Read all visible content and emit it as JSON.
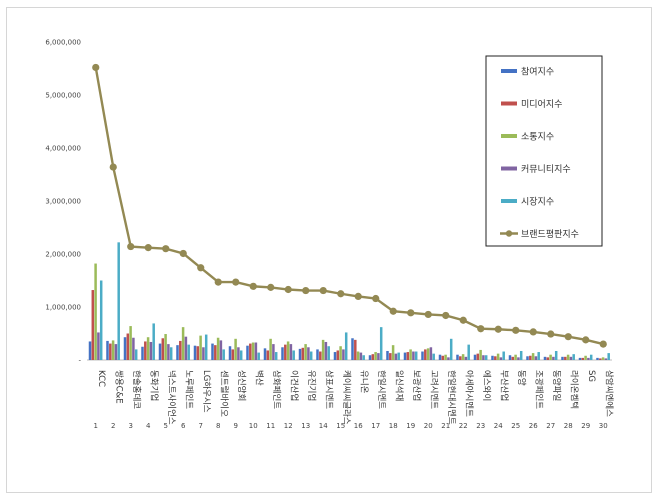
{
  "chart_data": {
    "type": "bar",
    "yticks": [
      "6,000,000",
      "5,000,000",
      "4,000,000",
      "3,000,000",
      "2,000,000",
      "1,000,000",
      "-"
    ],
    "ylim": [
      0,
      6000000
    ],
    "categories": [
      "KCC",
      "쌍용C&E",
      "한솔홈데코",
      "동화기업",
      "넥스트사이언스",
      "노루페인트",
      "LG하우시스",
      "센트럴바이오",
      "성신양회",
      "벽산",
      "삼화페인트",
      "이건산업",
      "유진기업",
      "삼표시멘트",
      "케이씨씨글라스",
      "유니온",
      "한일시멘트",
      "일신석재",
      "보광산업",
      "고려시멘트",
      "한일현대시멘트",
      "아세아시멘트",
      "에스와이",
      "부산산업",
      "동양",
      "조광페인트",
      "동양파일",
      "라이온켐텍",
      "SG",
      "삼암씨엔에스"
    ],
    "ranks": [
      "1",
      "2",
      "3",
      "4",
      "5",
      "6",
      "7",
      "8",
      "9",
      "10",
      "11",
      "12",
      "13",
      "14",
      "15",
      "16",
      "17",
      "18",
      "19",
      "20",
      "21",
      "22",
      "23",
      "24",
      "25",
      "26",
      "27",
      "28",
      "29",
      "30"
    ],
    "legend_position": "top-right",
    "series": [
      {
        "name": "참여지수",
        "color": "#4472c4",
        "type": "bar",
        "values": [
          350000,
          360000,
          430000,
          250000,
          310000,
          280000,
          270000,
          310000,
          260000,
          270000,
          220000,
          240000,
          210000,
          200000,
          150000,
          410000,
          90000,
          170000,
          140000,
          160000,
          100000,
          100000,
          100000,
          80000,
          90000,
          70000,
          60000,
          60000,
          40000,
          40000
        ]
      },
      {
        "name": "미디어지수",
        "color": "#c0504d",
        "type": "bar",
        "values": [
          1320000,
          310000,
          500000,
          350000,
          410000,
          360000,
          260000,
          280000,
          200000,
          310000,
          180000,
          290000,
          230000,
          160000,
          180000,
          380000,
          110000,
          130000,
          150000,
          200000,
          80000,
          70000,
          120000,
          70000,
          60000,
          80000,
          50000,
          60000,
          40000,
          30000
        ]
      },
      {
        "name": "소통지수",
        "color": "#9bbb59",
        "type": "bar",
        "values": [
          1820000,
          370000,
          640000,
          430000,
          490000,
          620000,
          460000,
          420000,
          400000,
          330000,
          400000,
          350000,
          300000,
          380000,
          260000,
          160000,
          150000,
          280000,
          200000,
          220000,
          100000,
          110000,
          190000,
          120000,
          100000,
          130000,
          100000,
          100000,
          80000,
          50000
        ]
      },
      {
        "name": "커뮤니티지수",
        "color": "#8064a2",
        "type": "bar",
        "values": [
          520000,
          300000,
          420000,
          340000,
          300000,
          440000,
          240000,
          370000,
          240000,
          330000,
          300000,
          300000,
          240000,
          340000,
          200000,
          140000,
          130000,
          120000,
          160000,
          240000,
          50000,
          60000,
          90000,
          50000,
          50000,
          70000,
          60000,
          60000,
          40000,
          30000
        ]
      },
      {
        "name": "시장지수",
        "color": "#4bacc6",
        "type": "bar",
        "values": [
          1500000,
          2220000,
          200000,
          690000,
          240000,
          290000,
          480000,
          200000,
          180000,
          140000,
          150000,
          180000,
          160000,
          260000,
          520000,
          90000,
          620000,
          140000,
          160000,
          120000,
          400000,
          290000,
          90000,
          160000,
          170000,
          150000,
          170000,
          110000,
          100000,
          130000
        ]
      },
      {
        "name": "브랜드평판지수",
        "color": "#938953",
        "type": "line",
        "values": [
          5520000,
          3640000,
          2140000,
          2120000,
          2100000,
          2010000,
          1740000,
          1470000,
          1470000,
          1390000,
          1370000,
          1330000,
          1310000,
          1310000,
          1250000,
          1200000,
          1160000,
          920000,
          890000,
          860000,
          840000,
          750000,
          590000,
          580000,
          560000,
          530000,
          490000,
          440000,
          380000,
          300000
        ]
      }
    ]
  }
}
